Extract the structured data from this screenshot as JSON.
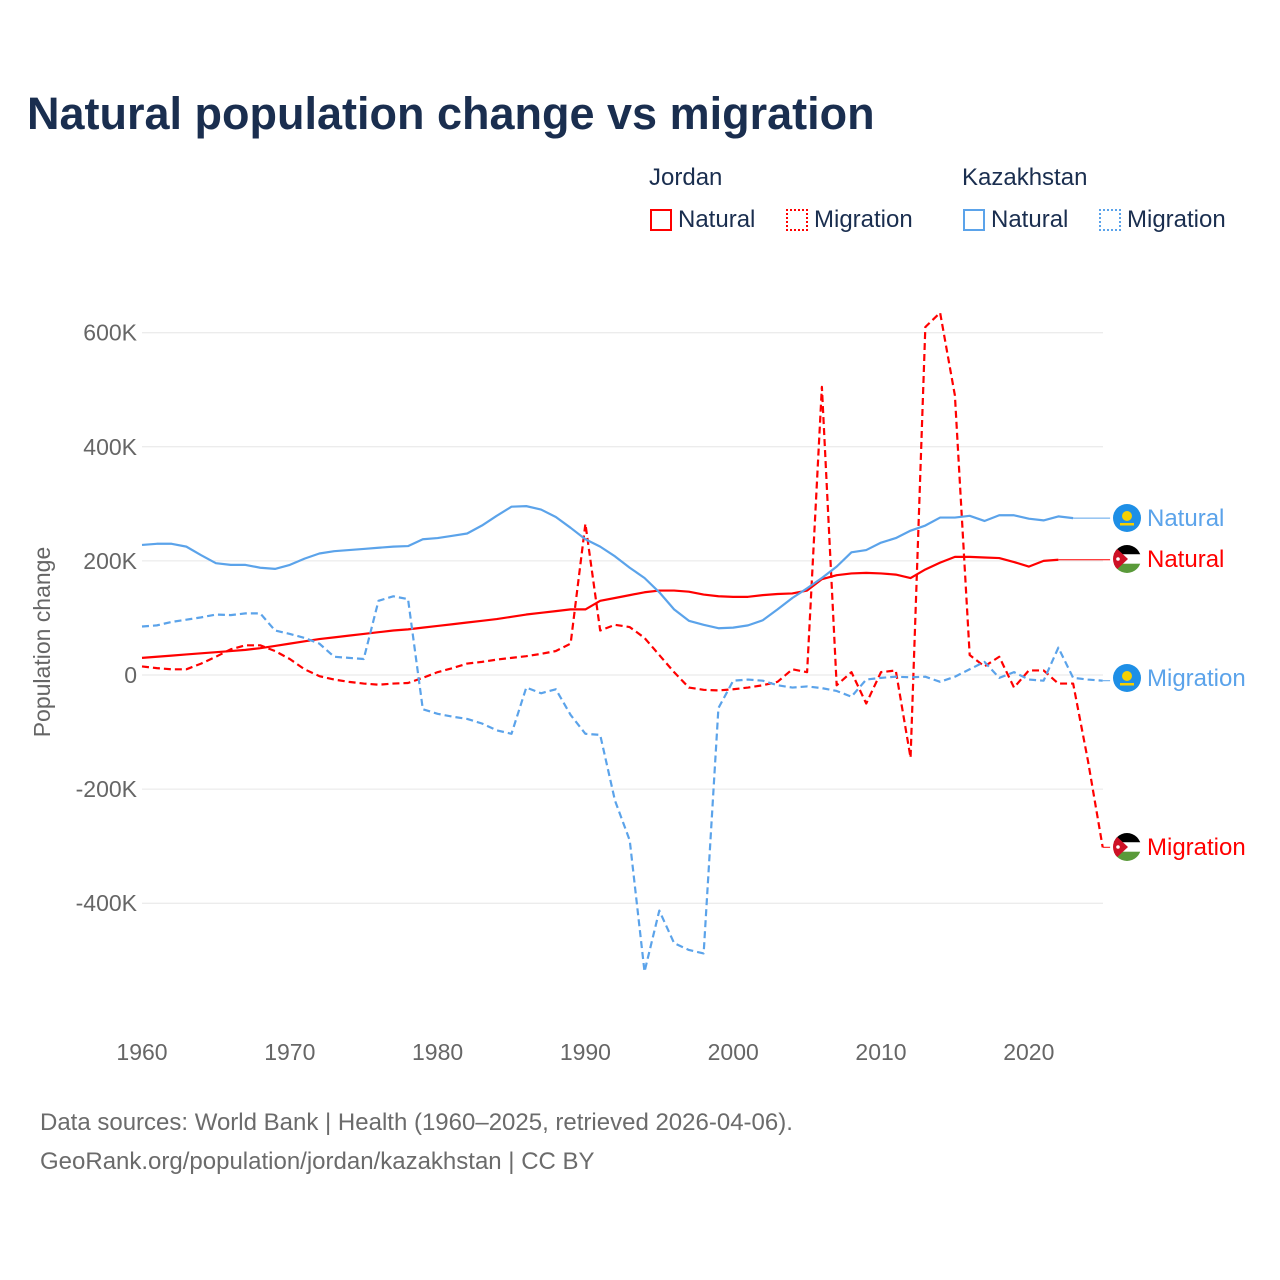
{
  "title": "Natural population change vs migration",
  "legend": {
    "groups": [
      {
        "name": "Jordan",
        "color": "#ff0000",
        "items": [
          "Natural",
          "Migration"
        ]
      },
      {
        "name": "Kazakhstan",
        "color": "#5ba3ea",
        "items": [
          "Natural",
          "Migration"
        ]
      }
    ]
  },
  "footer": {
    "line1": "Data sources: World Bank | Health (1960–2025, retrieved 2026-04-06).",
    "line2": "GeoRank.org/population/jordan/kazakhstan | CC BY"
  },
  "chart_data": {
    "type": "line",
    "title": "Natural population change vs migration",
    "xlabel": "",
    "ylabel": "Population change",
    "xlim": [
      1960,
      2025
    ],
    "ylim": [
      -550000,
      650000
    ],
    "x_ticks": [
      1960,
      1970,
      1980,
      1990,
      2000,
      2010,
      2020
    ],
    "y_ticks": [
      -400000,
      -200000,
      0,
      200000,
      400000,
      600000
    ],
    "y_tick_labels": [
      "-400K",
      "-200K",
      "0",
      "200K",
      "400K",
      "600K"
    ],
    "x_start": 1960,
    "grid": true,
    "legend_position": "top-right",
    "series": [
      {
        "name": "Jordan Natural",
        "end_label": "Natural",
        "flag": "jordan",
        "color": "#ff0000",
        "dash": false,
        "values": [
          30,
          32,
          34,
          36,
          38,
          40,
          42,
          44,
          47,
          51,
          55,
          59,
          63,
          66,
          69,
          72,
          75,
          78,
          80,
          83,
          86,
          89,
          92,
          95,
          98,
          102,
          106,
          109,
          112,
          115,
          115,
          130,
          135,
          140,
          145,
          148,
          148,
          146,
          141,
          138,
          137,
          137,
          140,
          142,
          143,
          148,
          168,
          175,
          178,
          179,
          178,
          176,
          170,
          185,
          197,
          207,
          207,
          206,
          205,
          198,
          190,
          200,
          202
        ]
      },
      {
        "name": "Jordan Migration",
        "end_label": "Migration",
        "flag": "jordan",
        "color": "#ff0000",
        "dash": true,
        "values": [
          15,
          12,
          10,
          10,
          20,
          32,
          45,
          52,
          52,
          42,
          28,
          10,
          -2,
          -8,
          -12,
          -15,
          -17,
          -15,
          -14,
          -5,
          5,
          12,
          20,
          23,
          27,
          30,
          33,
          37,
          42,
          55,
          265,
          78,
          88,
          84,
          65,
          35,
          5,
          -22,
          -26,
          -27,
          -25,
          -22,
          -18,
          -12,
          10,
          5,
          505,
          -18,
          5,
          -50,
          5,
          8,
          -145,
          610,
          635,
          490,
          35,
          15,
          32,
          -22,
          8,
          8,
          -15,
          -15,
          -150,
          -302
        ]
      },
      {
        "name": "Kazakhstan Natural",
        "end_label": "Natural",
        "flag": "kazakhstan",
        "color": "#5ba3ea",
        "dash": false,
        "values": [
          228,
          230,
          230,
          225,
          210,
          196,
          193,
          193,
          188,
          186,
          193,
          204,
          213,
          217,
          219,
          221,
          223,
          225,
          226,
          238,
          240,
          244,
          248,
          262,
          279,
          295,
          296,
          290,
          277,
          258,
          238,
          225,
          208,
          188,
          170,
          145,
          115,
          95,
          88,
          82,
          83,
          87,
          96,
          115,
          135,
          152,
          170,
          190,
          215,
          219,
          232,
          240,
          253,
          262,
          276,
          276,
          279,
          270,
          280,
          280,
          274,
          271,
          278,
          275
        ]
      },
      {
        "name": "Kazakhstan Migration",
        "end_label": "Migration",
        "flag": "kazakhstan",
        "color": "#5ba3ea",
        "dash": true,
        "values": [
          85,
          87,
          93,
          97,
          101,
          106,
          105,
          108,
          108,
          78,
          72,
          65,
          55,
          32,
          30,
          28,
          130,
          138,
          133,
          -60,
          -68,
          -73,
          -77,
          -85,
          -97,
          -103,
          -22,
          -32,
          -25,
          -70,
          -103,
          -105,
          -220,
          -290,
          -520,
          -413,
          -470,
          -482,
          -488,
          -58,
          -10,
          -8,
          -10,
          -18,
          -22,
          -20,
          -23,
          -28,
          -38,
          -8,
          -5,
          -3,
          -4,
          -3,
          -12,
          -3,
          10,
          23,
          -5,
          5,
          -8,
          -10,
          48,
          -5,
          -8,
          -10
        ]
      }
    ],
    "value_unit": "thousands"
  }
}
